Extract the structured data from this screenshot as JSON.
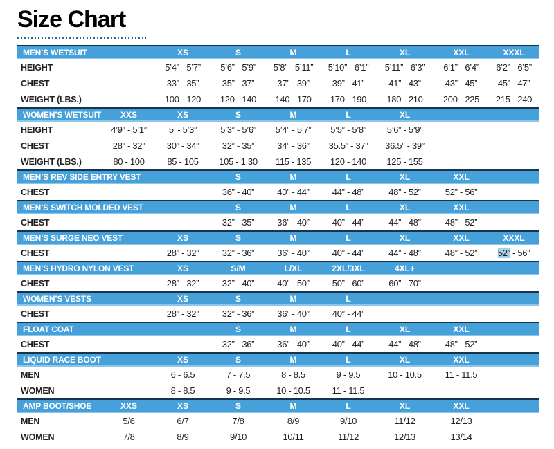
{
  "page_title": "Size Chart",
  "colors": {
    "header_background": "#46a1da",
    "header_text": "#ffffff",
    "header_top_border": "#17344f",
    "header_bottom_border": "#8ec6ea",
    "body_text": "#231f20",
    "selection_highlight": "#a9cfe9",
    "title_text": "#000000",
    "dotted_rule": "#26658f"
  },
  "table": {
    "column_slots": 8,
    "sections": [
      {
        "id": "mens-wetsuit",
        "title": "MEN’S WETSUIT",
        "sizes": [
          "",
          "XS",
          "S",
          "M",
          "L",
          "XL",
          "XXL",
          "XXXL"
        ],
        "rows": [
          {
            "label": "HEIGHT",
            "cells": [
              "",
              "5’4” - 5’7”",
              "5’6” - 5’9”",
              "5’8” - 5’11”",
              "5’10” - 6’1”",
              "5’11” - 6’3”",
              "6’1” - 6’4”",
              "6’2” - 6’5”"
            ]
          },
          {
            "label": "CHEST",
            "cells": [
              "",
              "33” - 35”",
              "35” - 37”",
              "37” - 39”",
              "39” - 41”",
              "41” - 43”",
              "43” - 45”",
              "45” - 47”"
            ]
          },
          {
            "label": "WEIGHT (LBS.)",
            "cells": [
              "",
              "100 - 120",
              "120 - 140",
              "140 - 170",
              "170 - 190",
              "180 - 210",
              "200 - 225",
              "215 - 240"
            ]
          }
        ]
      },
      {
        "id": "womens-wetsuit",
        "title": "WOMEN’S WETSUIT",
        "sizes": [
          "XXS",
          "XS",
          "S",
          "M",
          "L",
          "XL",
          "",
          ""
        ],
        "rows": [
          {
            "label": "HEIGHT",
            "cells": [
              "4’9” - 5’1”",
              "5’ - 5’3”",
              "5’3” - 5’6”",
              "5’4” - 5’7”",
              "5’5” - 5’8”",
              "5’6” - 5’9”",
              "",
              ""
            ]
          },
          {
            "label": "CHEST",
            "cells": [
              "28” - 32”",
              "30” - 34”",
              "32” - 35”",
              "34” - 36”",
              "35.5” - 37”",
              "36.5” - 39”",
              "",
              ""
            ]
          },
          {
            "label": "WEIGHT (LBS.)",
            "cells": [
              "80 - 100",
              "85 - 105",
              "105 - 1 30",
              "115 - 135",
              "120 - 140",
              "125 - 155",
              "",
              ""
            ]
          }
        ]
      },
      {
        "id": "mens-rev-side-entry-vest",
        "title": "MEN’S REV SIDE ENTRY VEST",
        "sizes": [
          "",
          "",
          "S",
          "M",
          "L",
          "XL",
          "XXL",
          ""
        ],
        "rows": [
          {
            "label": "CHEST",
            "cells": [
              "",
              "",
              "36” - 40”",
              "40” - 44”",
              "44” - 48”",
              "48” - 52”",
              "52” - 56”",
              ""
            ]
          }
        ]
      },
      {
        "id": "mens-switch-molded-vest",
        "title": "MEN’S SWITCH MOLDED VEST",
        "sizes": [
          "",
          "",
          "S",
          "M",
          "L",
          "XL",
          "XXL",
          ""
        ],
        "rows": [
          {
            "label": "CHEST",
            "cells": [
              "",
              "",
              "32” - 35”",
              "36” - 40”",
              "40” - 44”",
              "44” - 48”",
              "48” - 52”",
              ""
            ]
          }
        ]
      },
      {
        "id": "mens-surge-neo-vest",
        "title": "MEN’S SURGE NEO VEST",
        "sizes": [
          "",
          "XS",
          "S",
          "M",
          "L",
          "XL",
          "XXL",
          "XXXL"
        ],
        "rows": [
          {
            "label": "CHEST",
            "cells": [
              "",
              "28” - 32”",
              "32” - 36”",
              "36” - 40”",
              "40” - 44”",
              "44” - 48”",
              "48” - 52”",
              {
                "highlight": "52”",
                "rest": " - 56”"
              }
            ]
          }
        ]
      },
      {
        "id": "mens-hydro-nylon-vest",
        "title": "MEN’S HYDRO NYLON VEST",
        "sizes": [
          "",
          "XS",
          "S/M",
          "L/XL",
          "2XL/3XL",
          "4XL+",
          "",
          ""
        ],
        "rows": [
          {
            "label": "CHEST",
            "cells": [
              "",
              "28” - 32”",
              "32” - 40”",
              "40” - 50”",
              "50” - 60”",
              "60” - 70”",
              "",
              ""
            ]
          }
        ]
      },
      {
        "id": "womens-vests",
        "title": "WOMEN’S VESTS",
        "sizes": [
          "",
          "XS",
          "S",
          "M",
          "L",
          "",
          "",
          ""
        ],
        "rows": [
          {
            "label": "CHEST",
            "cells": [
              "",
              "28” - 32”",
              "32” - 36”",
              "36” - 40”",
              "40” - 44”",
              "",
              "",
              ""
            ]
          }
        ]
      },
      {
        "id": "float-coat",
        "title": "FLOAT COAT",
        "sizes": [
          "",
          "",
          "S",
          "M",
          "L",
          "XL",
          "XXL",
          ""
        ],
        "rows": [
          {
            "label": "CHEST",
            "cells": [
              "",
              "",
              "32” - 36”",
              "36” - 40”",
              "40” - 44”",
              "44” - 48”",
              "48” - 52”",
              ""
            ]
          }
        ]
      },
      {
        "id": "liquid-race-boot",
        "title": "LIQUID RACE BOOT",
        "sizes": [
          "",
          "XS",
          "S",
          "M",
          "L",
          "XL",
          "XXL",
          ""
        ],
        "rows": [
          {
            "label": "MEN",
            "cells": [
              "",
              "6 - 6.5",
              "7 - 7.5",
              "8 - 8.5",
              "9 - 9.5",
              "10 - 10.5",
              "11 - 11.5",
              ""
            ]
          },
          {
            "label": "WOMEN",
            "cells": [
              "",
              "8 - 8.5",
              "9 - 9.5",
              "10 - 10.5",
              "11 - 11.5",
              "",
              "",
              ""
            ]
          }
        ]
      },
      {
        "id": "amp-boot-shoe",
        "title": "AMP BOOT/SHOE",
        "sizes": [
          "XXS",
          "XS",
          "S",
          "M",
          "L",
          "XL",
          "XXL",
          ""
        ],
        "rows": [
          {
            "label": "MEN",
            "cells": [
              "5/6",
              "6/7",
              "7/8",
              "8/9",
              "9/10",
              "11/12",
              "12/13",
              ""
            ]
          },
          {
            "label": "WOMEN",
            "cells": [
              "7/8",
              "8/9",
              "9/10",
              "10/11",
              "11/12",
              "12/13",
              "13/14",
              ""
            ]
          }
        ]
      }
    ]
  }
}
